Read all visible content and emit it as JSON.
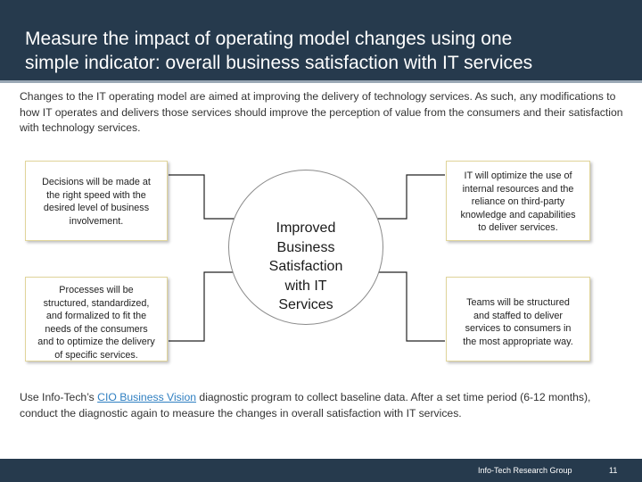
{
  "slide": {
    "title_line1": "Measure the impact of operating model changes using one",
    "title_line2": "simple indicator: overall business satisfaction with IT services",
    "intro": "Changes to the IT operating model are aimed at improving the delivery of technology services. As such, any modifications to how IT operates and delivers those services should improve the perception of value from the consumers and their satisfaction with technology services."
  },
  "diagram": {
    "center": [
      "Improved",
      "Business",
      "Satisfaction",
      "with IT",
      "Services"
    ],
    "top_left": [
      "Decisions will be made at",
      "the right speed with the",
      "desired level of business",
      "involvement."
    ],
    "bottom_left": [
      "Processes will be",
      "structured, standardized,",
      "and formalized to fit the",
      "needs of the consumers",
      "and to optimize the delivery",
      "of specific services."
    ],
    "top_right": [
      "IT will optimize the use of",
      "internal resources and the",
      "reliance on third-party",
      "knowledge and capabilities",
      "to deliver services."
    ],
    "bottom_right": [
      "Teams will be structured",
      "and staffed to deliver",
      "services to consumers in",
      "the most appropriate way."
    ]
  },
  "outro": {
    "before_link": "Use Info-Tech’s ",
    "link_text": "CIO Business Vision",
    "after_link": " diagnostic program to collect baseline data. After a set time period (6-12 months), conduct the diagnostic again to measure the changes in overall satisfaction with IT services."
  },
  "footer": {
    "organization": "Info-Tech Research Group",
    "page_number": "11"
  },
  "colors": {
    "header_bg": "#263a4d",
    "box_border": "#e0d49a",
    "link": "#2f7fc1"
  }
}
